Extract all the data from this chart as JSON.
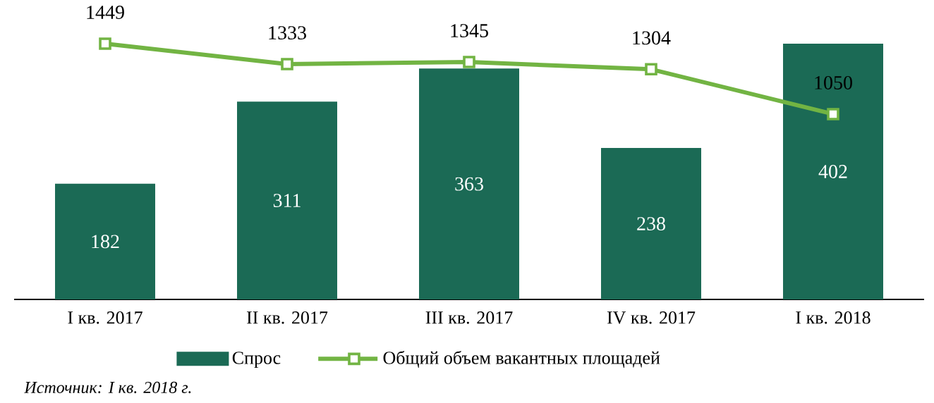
{
  "chart_data": {
    "type": "bar",
    "categories": [
      "I кв. 2017",
      "II кв. 2017",
      "III кв. 2017",
      "IV кв. 2017",
      "I кв. 2018"
    ],
    "series": [
      {
        "name": "Спрос",
        "color": "#1b6a55",
        "values": [
          182,
          311,
          363,
          238,
          402
        ]
      },
      {
        "name": "Общий объем вакантных площадей",
        "type": "line",
        "axis": "y2",
        "color": "#72b443",
        "values": [
          1449,
          1333,
          1345,
          1304,
          1050
        ]
      }
    ],
    "ylim": [
      0,
      402
    ],
    "y2lim": [
      0,
      1449
    ],
    "marker": "square",
    "data_labels": true,
    "legend": "bottom",
    "annotations": [
      "Источник: I кв. 2018 г."
    ]
  }
}
